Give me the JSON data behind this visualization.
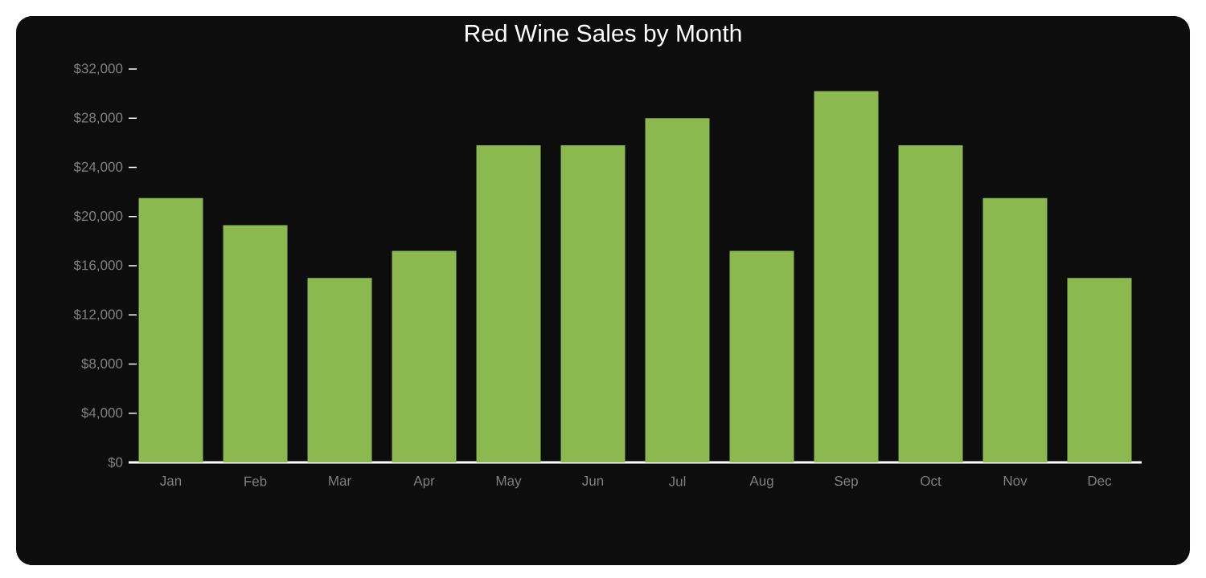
{
  "chart_data": {
    "type": "bar",
    "title": "Red Wine Sales by Month",
    "categories": [
      "Jan",
      "Feb",
      "Mar",
      "Apr",
      "May",
      "Jun",
      "Jul",
      "Aug",
      "Sep",
      "Oct",
      "Nov",
      "Dec"
    ],
    "values": [
      21500,
      19300,
      15000,
      17200,
      25800,
      25800,
      28000,
      17200,
      30200,
      25800,
      21500,
      15000
    ],
    "color": "#8bb84f",
    "ylim": [
      0,
      32000
    ],
    "yticks": [
      {
        "value": 0,
        "label": "$0"
      },
      {
        "value": 4000,
        "label": "$4,000"
      },
      {
        "value": 8000,
        "label": "$8,000"
      },
      {
        "value": 12000,
        "label": "$12,000"
      },
      {
        "value": 16000,
        "label": "$16,000"
      },
      {
        "value": 20000,
        "label": "$20,000"
      },
      {
        "value": 24000,
        "label": "$24,000"
      },
      {
        "value": 28000,
        "label": "$28,000"
      },
      {
        "value": 32000,
        "label": "$32,000"
      }
    ],
    "grid": false
  }
}
